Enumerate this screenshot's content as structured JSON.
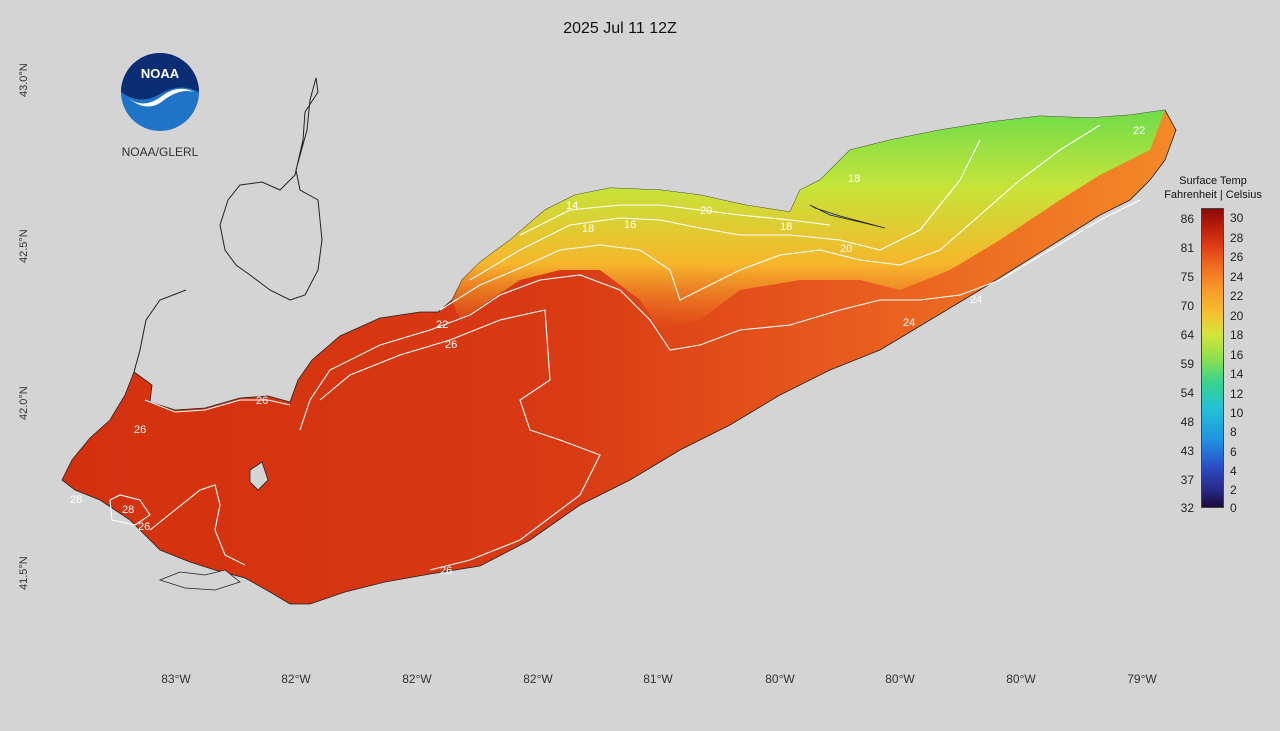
{
  "title": "2025 Jul 11 12Z",
  "logo": {
    "text": "NOAA",
    "caption": "NOAA/GLERL"
  },
  "lat_labels": [
    "43.0°N",
    "42.5°N",
    "42.0°N",
    "41.5°N"
  ],
  "lon_labels": [
    "83°W",
    "82°W",
    "82°W",
    "82°W",
    "81°W",
    "80°W",
    "80°W",
    "80°W",
    "79°W"
  ],
  "contour_labels": [
    "14",
    "16",
    "18",
    "18",
    "18",
    "20",
    "20",
    "22",
    "22",
    "24",
    "24",
    "26",
    "26",
    "26",
    "26",
    "28",
    "28",
    "26"
  ],
  "legend": {
    "title": "Surface Temp",
    "subtitle": "Fahrenheit | Celsius",
    "fahrenheit": [
      "86",
      "81",
      "75",
      "70",
      "64",
      "59",
      "54",
      "48",
      "43",
      "37",
      "32"
    ],
    "celsius": [
      "30",
      "28",
      "26",
      "24",
      "22",
      "20",
      "18",
      "16",
      "14",
      "12",
      "10",
      "8",
      "6",
      "4",
      "2",
      "0"
    ]
  },
  "colors": {
    "background": "#d4d4d4",
    "warm": "#d63a14",
    "mid": "#f07a24",
    "cool": "#8ee04a",
    "noaa_blue": "#1f74c8"
  }
}
